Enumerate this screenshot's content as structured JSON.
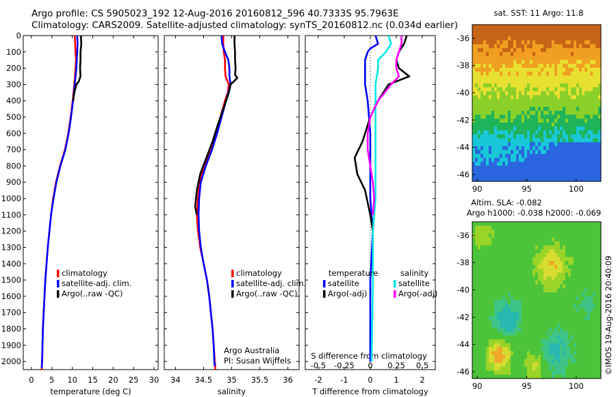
{
  "header": {
    "line1": "Argo profile: CS 5905023_192 12-Aug-2016 20160812_596 40.7333S 95.7963E",
    "line2": "Climatology: CARS2009. Satellite-adjusted climatology: synTS_20160812.nc (0.034d earlier)"
  },
  "side_label": "©IMOS 19-Aug-2016 20:40:09",
  "chart_data": [
    {
      "id": "temp",
      "type": "line",
      "xlabel": "temperature (deg C)",
      "xlim": [
        -2,
        31
      ],
      "xticks": [
        0,
        5,
        10,
        15,
        20,
        25,
        30
      ],
      "ylim": [
        0,
        2050
      ],
      "yticks": [
        0,
        100,
        200,
        300,
        400,
        500,
        600,
        700,
        800,
        900,
        1000,
        1100,
        1200,
        1300,
        1400,
        1500,
        1600,
        1700,
        1800,
        1900,
        2000
      ],
      "legend": [
        "climatology",
        "satellite-adj. clim.",
        "Argo(..raw -QC)"
      ],
      "series": [
        {
          "name": "climatology",
          "color": "#ff0000",
          "points": [
            [
              10.6,
              0
            ],
            [
              10.7,
              50
            ],
            [
              10.8,
              100
            ],
            [
              10.9,
              150
            ],
            [
              10.8,
              200
            ],
            [
              10.5,
              300
            ],
            [
              10.1,
              400
            ],
            [
              9.6,
              500
            ],
            [
              9.0,
              600
            ],
            [
              8.2,
              700
            ],
            [
              7.0,
              800
            ],
            [
              6.0,
              900
            ],
            [
              5.3,
              1000
            ],
            [
              4.8,
              1100
            ],
            [
              4.4,
              1200
            ],
            [
              4.0,
              1300
            ],
            [
              3.7,
              1400
            ],
            [
              3.4,
              1500
            ],
            [
              3.2,
              1600
            ],
            [
              3.0,
              1700
            ],
            [
              2.8,
              1800
            ],
            [
              2.7,
              1900
            ],
            [
              2.6,
              2000
            ],
            [
              2.5,
              2050
            ]
          ]
        },
        {
          "name": "satellite-adj. clim.",
          "color": "#0000ff",
          "points": [
            [
              11.2,
              0
            ],
            [
              11.3,
              50
            ],
            [
              11.2,
              100
            ],
            [
              11.0,
              200
            ],
            [
              10.6,
              300
            ],
            [
              10.2,
              400
            ],
            [
              9.7,
              500
            ],
            [
              9.1,
              600
            ],
            [
              8.3,
              700
            ],
            [
              7.1,
              800
            ],
            [
              6.1,
              900
            ],
            [
              5.4,
              1000
            ],
            [
              4.8,
              1100
            ],
            [
              4.4,
              1200
            ],
            [
              4.0,
              1300
            ],
            [
              3.7,
              1400
            ],
            [
              3.4,
              1500
            ],
            [
              3.2,
              1600
            ],
            [
              3.0,
              1700
            ],
            [
              2.8,
              1800
            ],
            [
              2.7,
              1900
            ],
            [
              2.6,
              2000
            ],
            [
              2.5,
              2040
            ]
          ]
        },
        {
          "name": "Argo(..raw -QC)",
          "color": "#000000",
          "points": [
            [
              12.1,
              0
            ],
            [
              12.2,
              50
            ],
            [
              12.0,
              100
            ],
            [
              12.0,
              150
            ],
            [
              11.9,
              200
            ],
            [
              12.0,
              250
            ],
            [
              11.6,
              280
            ],
            [
              11.0,
              300
            ],
            [
              10.5,
              350
            ],
            [
              10.2,
              400
            ]
          ]
        }
      ]
    },
    {
      "id": "sal",
      "type": "line",
      "xlabel": "salinity",
      "xlim": [
        33.8,
        36.2
      ],
      "xticks": [
        34,
        34.5,
        35,
        35.5,
        36
      ],
      "ylim": [
        0,
        2050
      ],
      "legend": [
        "climatology",
        "satellite-adj. clim.",
        "Argo(..raw -QC)"
      ],
      "annotation": [
        "Argo Australia",
        "PI: Susan Wijffels"
      ],
      "series": [
        {
          "name": "climatology",
          "color": "#ff0000",
          "points": [
            [
              34.85,
              0
            ],
            [
              34.85,
              50
            ],
            [
              34.86,
              100
            ],
            [
              34.88,
              150
            ],
            [
              34.88,
              200
            ],
            [
              34.89,
              250
            ],
            [
              34.95,
              300
            ],
            [
              34.93,
              350
            ],
            [
              34.88,
              400
            ],
            [
              34.8,
              500
            ],
            [
              34.72,
              600
            ],
            [
              34.63,
              700
            ],
            [
              34.52,
              800
            ],
            [
              34.43,
              900
            ],
            [
              34.4,
              1000
            ],
            [
              34.38,
              1100
            ],
            [
              34.4,
              1200
            ],
            [
              34.44,
              1300
            ],
            [
              34.5,
              1400
            ],
            [
              34.56,
              1500
            ],
            [
              34.6,
              1600
            ],
            [
              34.63,
              1700
            ],
            [
              34.66,
              1800
            ],
            [
              34.68,
              1900
            ],
            [
              34.7,
              2000
            ],
            [
              34.71,
              2050
            ]
          ]
        },
        {
          "name": "satellite-adj. clim.",
          "color": "#0000ff",
          "points": [
            [
              34.82,
              0
            ],
            [
              34.83,
              50
            ],
            [
              34.88,
              100
            ],
            [
              34.94,
              150
            ],
            [
              34.96,
              200
            ],
            [
              34.96,
              250
            ],
            [
              34.98,
              300
            ],
            [
              34.94,
              350
            ],
            [
              34.9,
              400
            ],
            [
              34.82,
              500
            ],
            [
              34.74,
              600
            ],
            [
              34.65,
              700
            ],
            [
              34.54,
              800
            ],
            [
              34.45,
              900
            ],
            [
              34.42,
              1000
            ],
            [
              34.41,
              1100
            ],
            [
              34.42,
              1200
            ],
            [
              34.45,
              1300
            ],
            [
              34.5,
              1400
            ],
            [
              34.56,
              1500
            ],
            [
              34.6,
              1600
            ],
            [
              34.63,
              1700
            ],
            [
              34.66,
              1800
            ],
            [
              34.68,
              1900
            ],
            [
              34.69,
              2000
            ],
            [
              34.7,
              2030
            ]
          ]
        },
        {
          "name": "Argo(..raw -QC)",
          "color": "#000000",
          "points": [
            [
              35.05,
              0
            ],
            [
              35.05,
              50
            ],
            [
              35.06,
              100
            ],
            [
              35.06,
              150
            ],
            [
              35.07,
              200
            ],
            [
              35.06,
              240
            ],
            [
              35.1,
              260
            ],
            [
              34.98,
              300
            ],
            [
              34.95,
              350
            ],
            [
              34.85,
              450
            ],
            [
              34.75,
              550
            ],
            [
              34.66,
              650
            ],
            [
              34.55,
              750
            ],
            [
              34.44,
              850
            ],
            [
              34.38,
              950
            ],
            [
              34.35,
              1050
            ],
            [
              34.38,
              1100
            ]
          ]
        }
      ]
    },
    {
      "id": "diff",
      "type": "line",
      "xlabel": "T difference from climatology",
      "xlabel_top": "S difference from climatology",
      "xlim": [
        -2.5,
        2.5
      ],
      "xticks": [
        -2,
        -1,
        0,
        1,
        2
      ],
      "xticks_top": [
        -0.5,
        -0.25,
        0,
        0.25,
        0.5
      ],
      "ylim": [
        0,
        2050
      ],
      "legend_titles": [
        "temperature",
        "salinity"
      ],
      "legend": [
        "satellite",
        "Argo(-adj)",
        "satellite",
        "Argo(-adj)"
      ],
      "series": [
        {
          "name": "temperature satellite",
          "color": "#0000ff",
          "points": [
            [
              0.2,
              0
            ],
            [
              0.3,
              50
            ],
            [
              0.0,
              80
            ],
            [
              -0.1,
              100
            ],
            [
              -0.2,
              150
            ],
            [
              -0.2,
              200
            ],
            [
              -0.2,
              300
            ],
            [
              -0.1,
              400
            ],
            [
              0.0,
              600
            ],
            [
              0.0,
              800
            ],
            [
              0.0,
              1000
            ],
            [
              0.1,
              1200
            ],
            [
              0.0,
              1500
            ],
            [
              0.0,
              2000
            ]
          ]
        },
        {
          "name": "temperature Argo(-adj)",
          "color": "#000000",
          "points": [
            [
              1.4,
              0
            ],
            [
              1.3,
              50
            ],
            [
              1.1,
              100
            ],
            [
              1.0,
              150
            ],
            [
              1.1,
              200
            ],
            [
              1.5,
              250
            ],
            [
              0.7,
              300
            ],
            [
              0.3,
              400
            ],
            [
              0.0,
              500
            ],
            [
              -0.3,
              650
            ],
            [
              -0.6,
              750
            ],
            [
              -0.5,
              850
            ],
            [
              -0.2,
              950
            ],
            [
              0.0,
              1100
            ],
            [
              0.1,
              1200
            ]
          ]
        },
        {
          "name": "salinity satellite",
          "color": "#00e8e8",
          "points": [
            [
              0.7,
              0
            ],
            [
              0.8,
              50
            ],
            [
              0.6,
              100
            ],
            [
              0.3,
              150
            ],
            [
              0.3,
              200
            ],
            [
              0.2,
              300
            ],
            [
              0.2,
              500
            ],
            [
              0.2,
              800
            ],
            [
              0.2,
              1000
            ],
            [
              0.1,
              1200
            ],
            [
              0.1,
              1500
            ],
            [
              0.05,
              2000
            ]
          ]
        },
        {
          "name": "salinity Argo(-adj)",
          "color": "#ff00ff",
          "points": [
            [
              1.2,
              0
            ],
            [
              1.2,
              50
            ],
            [
              1.1,
              100
            ],
            [
              1.0,
              150
            ],
            [
              1.0,
              200
            ],
            [
              1.1,
              250
            ],
            [
              0.8,
              300
            ],
            [
              0.3,
              400
            ],
            [
              0.0,
              500
            ],
            [
              -0.1,
              600
            ],
            [
              -0.1,
              700
            ],
            [
              0.0,
              800
            ],
            [
              0.1,
              900
            ],
            [
              0.15,
              1000
            ],
            [
              0.1,
              1100
            ]
          ]
        }
      ]
    },
    {
      "id": "sst",
      "type": "heatmap",
      "title": "sat. SST: 11 Argo: 11.8",
      "xlim": [
        89.5,
        102.5
      ],
      "ylim": [
        -46.5,
        -35
      ],
      "xticks": [
        90,
        95,
        100
      ],
      "yticks": [
        -36,
        -38,
        -40,
        -42,
        -44,
        -46
      ]
    },
    {
      "id": "sla",
      "type": "heatmap",
      "title": [
        "Altim. SLA: -0.082",
        "Argo h1000: -0.038 h2000: -0.069"
      ],
      "xlim": [
        89.5,
        102.5
      ],
      "ylim": [
        -46.5,
        -35
      ],
      "xticks": [
        90,
        95,
        100
      ],
      "yticks": [
        -36,
        -38,
        -40,
        -42,
        -44,
        -46
      ]
    }
  ]
}
